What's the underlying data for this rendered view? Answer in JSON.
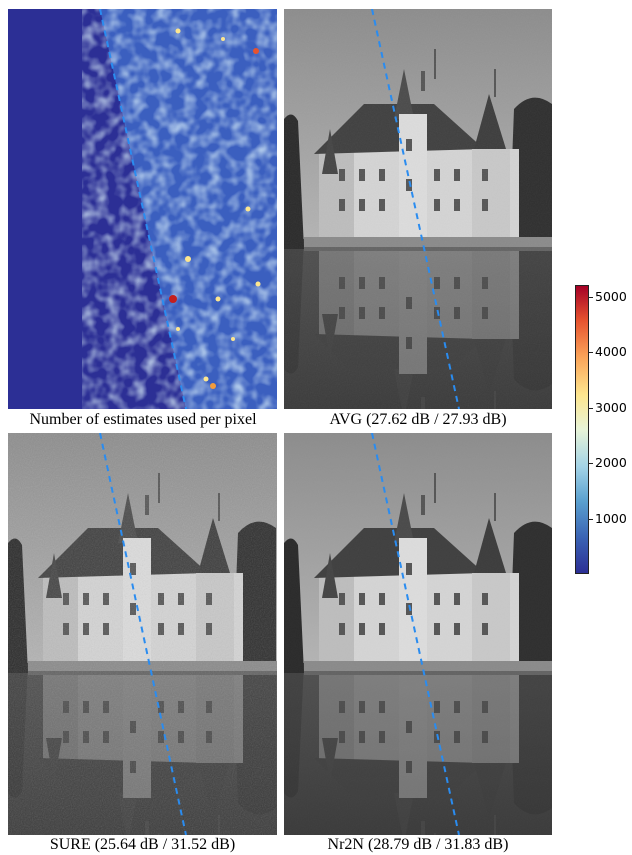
{
  "panels": [
    {
      "caption": "Number of estimates used per pixel"
    },
    {
      "caption": "AVG (27.62 dB / 27.93 dB)"
    },
    {
      "caption": "SURE (25.64 dB / 31.52 dB)"
    },
    {
      "caption": "Nr2N (28.79 dB / 31.83 dB)"
    }
  ],
  "colorbar": {
    "ticks": [
      "5000",
      "4000",
      "3000",
      "2000",
      "1000"
    ],
    "colors": {
      "low": "#2c2f95",
      "mid": "#e8f4d8",
      "high": "#a50026"
    }
  },
  "divider_color": "#2a8cf0"
}
